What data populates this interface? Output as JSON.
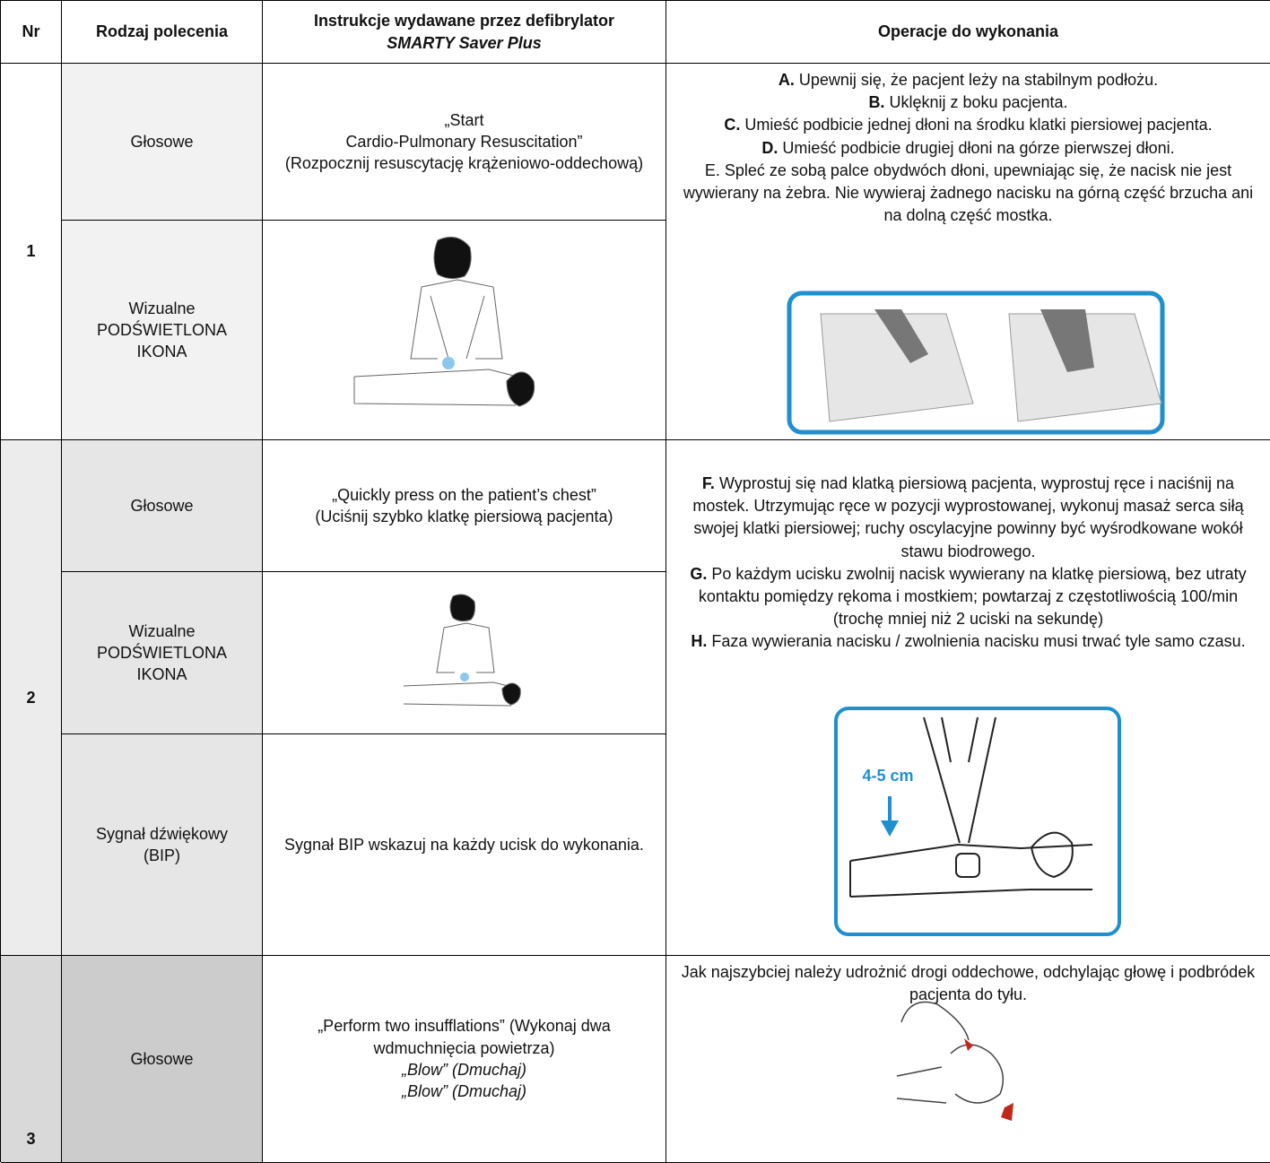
{
  "table": {
    "header": {
      "nr": "Nr",
      "type": "Rodzaj polecenia",
      "instruction": [
        "Instrukcje wydawane przez defibrylator",
        "SMARTY Saver Plus"
      ],
      "operations": "Operacje do wykonania"
    },
    "rows": [
      {
        "nr": "1",
        "commands": [
          {
            "type": [
              "Głosowe"
            ],
            "instruction": [
              {
                "text": "„Start"
              },
              {
                "text": "Cardio-Pulmonary Resuscitation”"
              },
              {
                "text": "(Rozpocznij resuscytację krążeniowo-oddechową)"
              }
            ]
          },
          {
            "type": [
              "Wizualne",
              "PODŚWIETLONA",
              "IKONA"
            ],
            "instruction": []
          }
        ],
        "operations": [
          {
            "label": "A.",
            "text": "Upewnij się, że pacjent leży na stabilnym podłożu."
          },
          {
            "label": "B.",
            "text": "Uklęknij z boku pacjenta."
          },
          {
            "label": "C.",
            "text": "Umieść podbicie jednej dłoni na środku klatki piersiowej pacjenta."
          },
          {
            "label": "D.",
            "text": "Umieść podbicie drugiej dłoni na górze pierwszej dłoni."
          },
          {
            "text": "E. Spleć ze sobą palce obydwóch dłoni, upewniając się, że nacisk nie jest wywierany na żebra. Nie wywieraj żadnego nacisku na górną część brzucha ani na dolną część mostka."
          }
        ]
      },
      {
        "nr": "2",
        "commands": [
          {
            "type": [
              "Głosowe"
            ],
            "instruction": [
              {
                "text": "„Quickly press on the patient’s chest”"
              },
              {
                "text": "(Uciśnij szybko klatkę piersiową pacjenta)"
              }
            ]
          },
          {
            "type": [
              "Wizualne",
              "PODŚWIETLONA",
              "IKONA"
            ],
            "instruction": []
          },
          {
            "type": [
              "Sygnał dźwiękowy",
              "(BIP)"
            ],
            "instruction": [
              {
                "text": "Sygnał BIP wskazuj na każdy ucisk do wykonania."
              }
            ]
          }
        ],
        "operations": [
          {
            "label": "F.",
            "text": "Wyprostuj się nad klatką piersiową pacjenta, wyprostuj ręce i naciśnij na mostek. Utrzymując ręce w pozycji wyprostowanej, wykonuj masaż serca siłą swojej klatki piersiowej; ruchy oscylacyjne powinny być wyśrodkowane wokół stawu biodrowego."
          },
          {
            "label": "G.",
            "text": "Po każdym ucisku zwolnij nacisk wywierany na klatkę piersiową, bez utraty kontaktu pomiędzy rękoma i mostkiem; powtarzaj z częstotliwością 100/min (trochę mniej niż 2 uciski na sekundę)"
          },
          {
            "label": "H.",
            "text": "Faza wywierania nacisku / zwolnienia nacisku musi trwać tyle samo czasu."
          }
        ],
        "image_label": "4-5 cm"
      },
      {
        "nr": "3",
        "commands": [
          {
            "type": [
              "Głosowe"
            ],
            "instruction": [
              {
                "text": "„Perform two insufflations” (Wykonaj dwa wdmuchnięcia powietrza)"
              },
              {
                "text": "„Blow” (Dmuchaj)",
                "italic": true
              },
              {
                "text": "„Blow” (Dmuchaj)",
                "italic": true
              }
            ]
          }
        ],
        "operations": [
          {
            "text": "Jak najszybciej należy udrożnić drogi oddechowe, odchylając głowę i podbródek pacjenta do tyłu."
          }
        ]
      }
    ]
  }
}
